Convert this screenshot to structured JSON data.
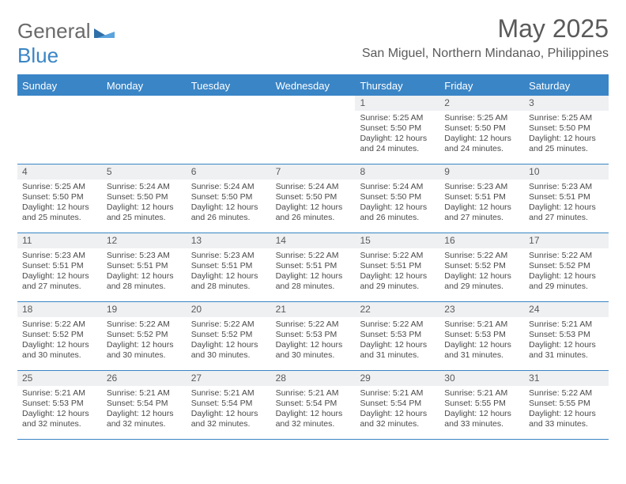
{
  "logo": {
    "text1": "General",
    "text2": "Blue"
  },
  "title": "May 2025",
  "location": "San Miguel, Northern Mindanao, Philippines",
  "colors": {
    "accent": "#3a85c6",
    "header_text": "#ffffff",
    "daynum_bg": "#eef0f2",
    "body_text": "#4a4a4a",
    "title_text": "#5a5a5a",
    "background": "#ffffff"
  },
  "fonts": {
    "title_size": 32,
    "location_size": 16,
    "dayhead_size": 13,
    "cell_size": 10.5
  },
  "day_headers": [
    "Sunday",
    "Monday",
    "Tuesday",
    "Wednesday",
    "Thursday",
    "Friday",
    "Saturday"
  ],
  "weeks": [
    [
      {
        "empty": true
      },
      {
        "empty": true
      },
      {
        "empty": true
      },
      {
        "empty": true
      },
      {
        "day": "1",
        "sunrise": "Sunrise: 5:25 AM",
        "sunset": "Sunset: 5:50 PM",
        "daylight": "Daylight: 12 hours and 24 minutes."
      },
      {
        "day": "2",
        "sunrise": "Sunrise: 5:25 AM",
        "sunset": "Sunset: 5:50 PM",
        "daylight": "Daylight: 12 hours and 24 minutes."
      },
      {
        "day": "3",
        "sunrise": "Sunrise: 5:25 AM",
        "sunset": "Sunset: 5:50 PM",
        "daylight": "Daylight: 12 hours and 25 minutes."
      }
    ],
    [
      {
        "day": "4",
        "sunrise": "Sunrise: 5:25 AM",
        "sunset": "Sunset: 5:50 PM",
        "daylight": "Daylight: 12 hours and 25 minutes."
      },
      {
        "day": "5",
        "sunrise": "Sunrise: 5:24 AM",
        "sunset": "Sunset: 5:50 PM",
        "daylight": "Daylight: 12 hours and 25 minutes."
      },
      {
        "day": "6",
        "sunrise": "Sunrise: 5:24 AM",
        "sunset": "Sunset: 5:50 PM",
        "daylight": "Daylight: 12 hours and 26 minutes."
      },
      {
        "day": "7",
        "sunrise": "Sunrise: 5:24 AM",
        "sunset": "Sunset: 5:50 PM",
        "daylight": "Daylight: 12 hours and 26 minutes."
      },
      {
        "day": "8",
        "sunrise": "Sunrise: 5:24 AM",
        "sunset": "Sunset: 5:50 PM",
        "daylight": "Daylight: 12 hours and 26 minutes."
      },
      {
        "day": "9",
        "sunrise": "Sunrise: 5:23 AM",
        "sunset": "Sunset: 5:51 PM",
        "daylight": "Daylight: 12 hours and 27 minutes."
      },
      {
        "day": "10",
        "sunrise": "Sunrise: 5:23 AM",
        "sunset": "Sunset: 5:51 PM",
        "daylight": "Daylight: 12 hours and 27 minutes."
      }
    ],
    [
      {
        "day": "11",
        "sunrise": "Sunrise: 5:23 AM",
        "sunset": "Sunset: 5:51 PM",
        "daylight": "Daylight: 12 hours and 27 minutes."
      },
      {
        "day": "12",
        "sunrise": "Sunrise: 5:23 AM",
        "sunset": "Sunset: 5:51 PM",
        "daylight": "Daylight: 12 hours and 28 minutes."
      },
      {
        "day": "13",
        "sunrise": "Sunrise: 5:23 AM",
        "sunset": "Sunset: 5:51 PM",
        "daylight": "Daylight: 12 hours and 28 minutes."
      },
      {
        "day": "14",
        "sunrise": "Sunrise: 5:22 AM",
        "sunset": "Sunset: 5:51 PM",
        "daylight": "Daylight: 12 hours and 28 minutes."
      },
      {
        "day": "15",
        "sunrise": "Sunrise: 5:22 AM",
        "sunset": "Sunset: 5:51 PM",
        "daylight": "Daylight: 12 hours and 29 minutes."
      },
      {
        "day": "16",
        "sunrise": "Sunrise: 5:22 AM",
        "sunset": "Sunset: 5:52 PM",
        "daylight": "Daylight: 12 hours and 29 minutes."
      },
      {
        "day": "17",
        "sunrise": "Sunrise: 5:22 AM",
        "sunset": "Sunset: 5:52 PM",
        "daylight": "Daylight: 12 hours and 29 minutes."
      }
    ],
    [
      {
        "day": "18",
        "sunrise": "Sunrise: 5:22 AM",
        "sunset": "Sunset: 5:52 PM",
        "daylight": "Daylight: 12 hours and 30 minutes."
      },
      {
        "day": "19",
        "sunrise": "Sunrise: 5:22 AM",
        "sunset": "Sunset: 5:52 PM",
        "daylight": "Daylight: 12 hours and 30 minutes."
      },
      {
        "day": "20",
        "sunrise": "Sunrise: 5:22 AM",
        "sunset": "Sunset: 5:52 PM",
        "daylight": "Daylight: 12 hours and 30 minutes."
      },
      {
        "day": "21",
        "sunrise": "Sunrise: 5:22 AM",
        "sunset": "Sunset: 5:53 PM",
        "daylight": "Daylight: 12 hours and 30 minutes."
      },
      {
        "day": "22",
        "sunrise": "Sunrise: 5:22 AM",
        "sunset": "Sunset: 5:53 PM",
        "daylight": "Daylight: 12 hours and 31 minutes."
      },
      {
        "day": "23",
        "sunrise": "Sunrise: 5:21 AM",
        "sunset": "Sunset: 5:53 PM",
        "daylight": "Daylight: 12 hours and 31 minutes."
      },
      {
        "day": "24",
        "sunrise": "Sunrise: 5:21 AM",
        "sunset": "Sunset: 5:53 PM",
        "daylight": "Daylight: 12 hours and 31 minutes."
      }
    ],
    [
      {
        "day": "25",
        "sunrise": "Sunrise: 5:21 AM",
        "sunset": "Sunset: 5:53 PM",
        "daylight": "Daylight: 12 hours and 32 minutes."
      },
      {
        "day": "26",
        "sunrise": "Sunrise: 5:21 AM",
        "sunset": "Sunset: 5:54 PM",
        "daylight": "Daylight: 12 hours and 32 minutes."
      },
      {
        "day": "27",
        "sunrise": "Sunrise: 5:21 AM",
        "sunset": "Sunset: 5:54 PM",
        "daylight": "Daylight: 12 hours and 32 minutes."
      },
      {
        "day": "28",
        "sunrise": "Sunrise: 5:21 AM",
        "sunset": "Sunset: 5:54 PM",
        "daylight": "Daylight: 12 hours and 32 minutes."
      },
      {
        "day": "29",
        "sunrise": "Sunrise: 5:21 AM",
        "sunset": "Sunset: 5:54 PM",
        "daylight": "Daylight: 12 hours and 32 minutes."
      },
      {
        "day": "30",
        "sunrise": "Sunrise: 5:21 AM",
        "sunset": "Sunset: 5:55 PM",
        "daylight": "Daylight: 12 hours and 33 minutes."
      },
      {
        "day": "31",
        "sunrise": "Sunrise: 5:22 AM",
        "sunset": "Sunset: 5:55 PM",
        "daylight": "Daylight: 12 hours and 33 minutes."
      }
    ]
  ]
}
